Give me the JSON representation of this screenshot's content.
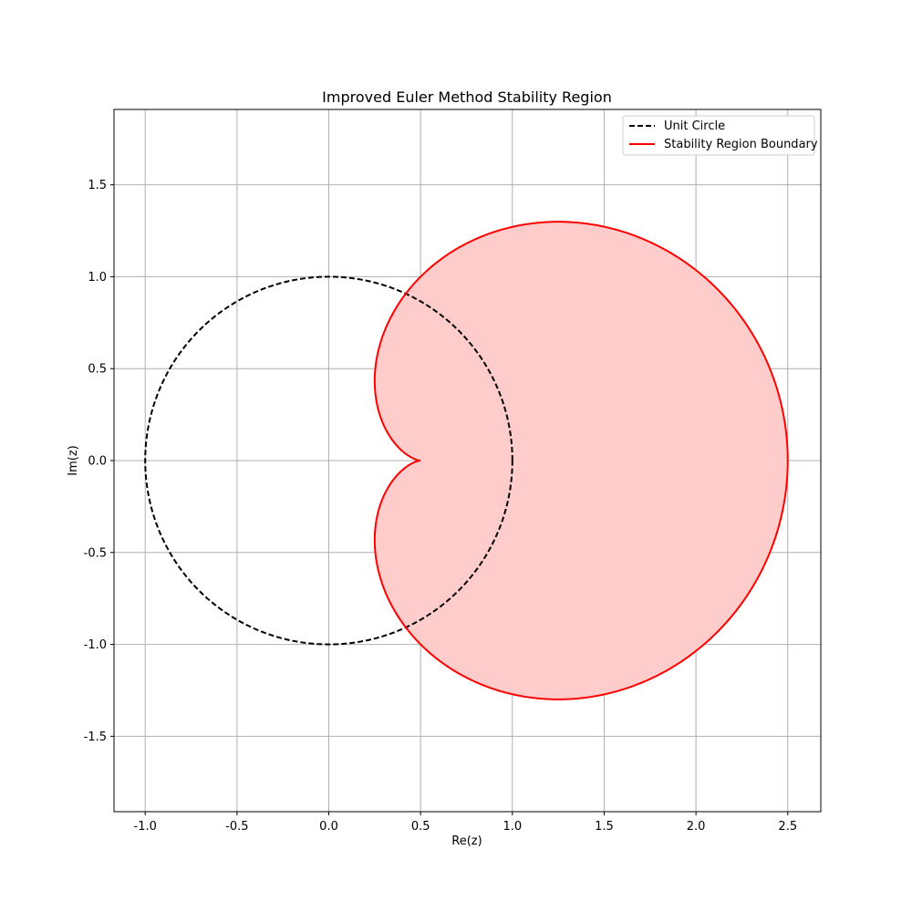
{
  "chart_data": {
    "type": "line",
    "title": "Improved Euler Method Stability Region",
    "xlabel": "Re(z)",
    "ylabel": "Im(z)",
    "xlim": [
      -1.17,
      2.68
    ],
    "ylim": [
      -1.91,
      1.91
    ],
    "xticks": [
      -1.0,
      -0.5,
      0.0,
      0.5,
      1.0,
      1.5,
      2.0,
      2.5
    ],
    "yticks": [
      -1.5,
      -1.0,
      -0.5,
      0.0,
      0.5,
      1.0,
      1.5
    ],
    "xtick_labels": [
      "-1.0",
      "-0.5",
      "0.0",
      "0.5",
      "1.0",
      "1.5",
      "2.0",
      "2.5"
    ],
    "ytick_labels": [
      "-1.5",
      "-1.0",
      "-0.5",
      "0.0",
      "0.5",
      "1.0",
      "1.5"
    ],
    "grid": true,
    "legend_position": "top-right",
    "series": [
      {
        "name": "Unit Circle",
        "color": "#000000",
        "style": "dashed",
        "curve": "circle",
        "center": [
          0,
          0
        ],
        "radius": 1.0
      },
      {
        "name": "Stability Region Boundary",
        "color": "#ff0000",
        "fill": "#ffcccc",
        "style": "solid",
        "curve": "cardioid",
        "equation": "z = 1 + e^{i t} + e^{2 i t}/2",
        "key_points": [
          [
            2.5,
            0.0
          ],
          [
            1.25,
            1.3
          ],
          [
            0.25,
            0.43
          ],
          [
            0.5,
            0.0
          ],
          [
            0.25,
            -0.43
          ],
          [
            1.25,
            -1.3
          ]
        ]
      }
    ]
  }
}
